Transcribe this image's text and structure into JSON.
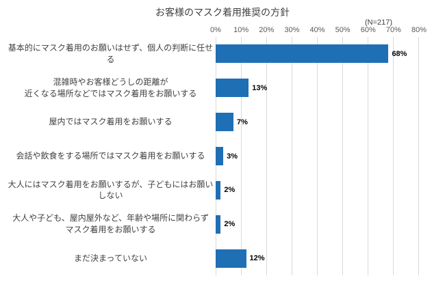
{
  "chart_data": {
    "type": "bar",
    "orientation": "horizontal",
    "title": "お客様のマスク着用推奨の方針",
    "n_label": "(N=217)",
    "categories": [
      "基本的にマスク着用のお願いはせず、個人の判断に任せ\nる",
      "混雑時やお客様どうしの距離が\n近くなる場所などではマスク着用をお願いする",
      "屋内ではマスク着用をお願いする",
      "会話や飲食をする場所ではマスク着用をお願いする",
      "大人にはマスク着用をお願いするが、子どもにはお願い\nしない",
      "大人や子ども、屋内屋外など、年齢や場所に関わらず\nマスク着用をお願いする",
      "まだ決まっていない"
    ],
    "values": [
      68,
      13,
      7,
      3,
      2,
      2,
      12
    ],
    "value_labels": [
      "68%",
      "13%",
      "7%",
      "3%",
      "2%",
      "2%",
      "12%"
    ],
    "ticks": [
      "0%",
      "10%",
      "20%",
      "30%",
      "40%",
      "50%",
      "60%",
      "70%",
      "80%"
    ],
    "xlim": [
      0,
      80
    ],
    "bar_color": "#1F6FB5",
    "gridline_color": "#d9d9d9",
    "grid": "vertical",
    "legend": "none"
  }
}
